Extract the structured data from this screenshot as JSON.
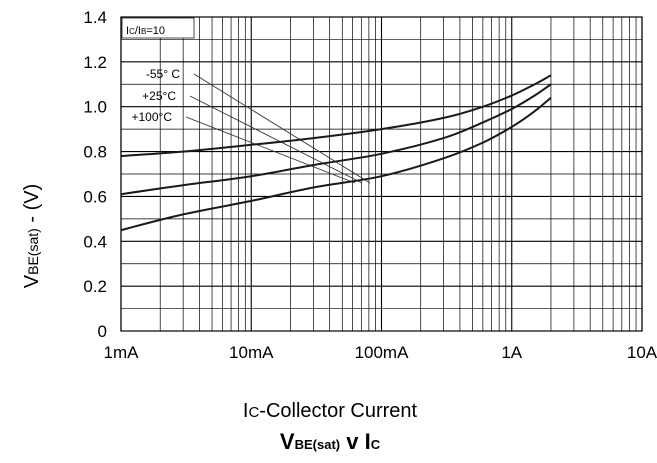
{
  "chart_data": {
    "type": "line",
    "title": {
      "main": "V",
      "sub": "BE(sat)",
      "mid": " v I",
      "tail": "C"
    },
    "xlabel": {
      "lead": "I",
      "sub": "C",
      "rest": "-Collector Current"
    },
    "ylabel": {
      "lead": "V",
      "sub": "BE(sat)",
      "rest": " - (V)"
    },
    "x_scale": "log",
    "xlim": [
      0.001,
      10
    ],
    "ylim": [
      0,
      1.4
    ],
    "x_tick_values": [
      0.001,
      0.01,
      0.1,
      1,
      10
    ],
    "x_tick_labels": [
      "1mA",
      "10mA",
      "100mA",
      "1A",
      "10A"
    ],
    "y_tick_values": [
      0,
      0.2,
      0.4,
      0.6,
      0.8,
      1.0,
      1.2,
      1.4
    ],
    "y_tick_labels": [
      "0",
      "0.2",
      "0.4",
      "0.6",
      "0.8",
      "1.0",
      "1.2",
      "1.4"
    ],
    "condition": {
      "a": "I",
      "b": "C",
      "c": "/I",
      "d": "B",
      "e": "=10"
    },
    "grid": true,
    "series": [
      {
        "name": "-55° C",
        "x": [
          0.001,
          0.003,
          0.01,
          0.03,
          0.1,
          0.3,
          0.6,
          1.0,
          1.5,
          2.0
        ],
        "y": [
          0.78,
          0.8,
          0.83,
          0.86,
          0.9,
          0.95,
          1.0,
          1.05,
          1.1,
          1.14
        ]
      },
      {
        "name": "+25°C",
        "x": [
          0.001,
          0.003,
          0.01,
          0.03,
          0.1,
          0.3,
          0.6,
          1.0,
          1.5,
          2.0
        ],
        "y": [
          0.61,
          0.65,
          0.69,
          0.74,
          0.79,
          0.86,
          0.93,
          0.99,
          1.05,
          1.1
        ]
      },
      {
        "name": "+100°C",
        "x": [
          0.001,
          0.003,
          0.01,
          0.03,
          0.1,
          0.3,
          0.6,
          1.0,
          1.5,
          2.0
        ],
        "y": [
          0.45,
          0.52,
          0.58,
          0.64,
          0.69,
          0.77,
          0.84,
          0.91,
          0.98,
          1.04
        ]
      }
    ],
    "colors": {
      "curve": "#1a1a1a",
      "grid": "#000000",
      "leader": "#333333"
    }
  }
}
